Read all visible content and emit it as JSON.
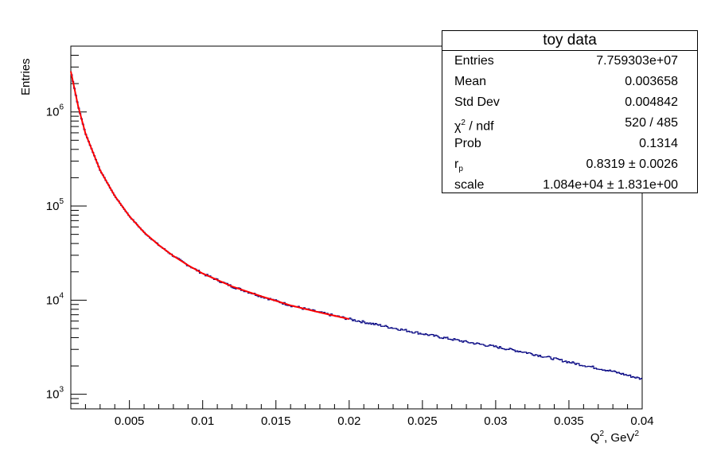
{
  "chart_data": {
    "type": "line",
    "title": "",
    "xlabel_main": "Q",
    "xlabel_sup": "2",
    "xlabel_rest": ", GeV",
    "xlabel_sup2": "2",
    "ylabel": "Entries",
    "xlim": [
      0.001,
      0.04
    ],
    "ylim": [
      700,
      5000000
    ],
    "yscale": "log",
    "grid": false,
    "x_ticks": [
      {
        "value": 0.005,
        "label": "0.005"
      },
      {
        "value": 0.01,
        "label": "0.01"
      },
      {
        "value": 0.015,
        "label": "0.015"
      },
      {
        "value": 0.02,
        "label": "0.02"
      },
      {
        "value": 0.025,
        "label": "0.025"
      },
      {
        "value": 0.03,
        "label": "0.03"
      },
      {
        "value": 0.035,
        "label": "0.035"
      },
      {
        "value": 0.04,
        "label": "0.04"
      }
    ],
    "y_ticks": [
      {
        "value": 1000,
        "base": "10",
        "exp": "3"
      },
      {
        "value": 10000,
        "base": "10",
        "exp": "4"
      },
      {
        "value": 100000,
        "base": "10",
        "exp": "5"
      },
      {
        "value": 1000000,
        "base": "10",
        "exp": "6"
      }
    ],
    "series": [
      {
        "kind": "histogram",
        "color": "#000080",
        "x": [
          0.001,
          0.0015,
          0.002,
          0.003,
          0.004,
          0.005,
          0.006,
          0.007,
          0.008,
          0.009,
          0.01,
          0.012,
          0.014,
          0.016,
          0.018,
          0.02,
          0.022,
          0.025,
          0.028,
          0.03,
          0.032,
          0.035,
          0.038,
          0.04
        ],
        "y": [
          2700000,
          1150000,
          590000,
          240000,
          128000,
          78000,
          52500,
          38500,
          29500,
          23500,
          19200,
          14000,
          11000,
          8800,
          7400,
          6300,
          5450,
          4400,
          3600,
          3200,
          2800,
          2200,
          1750,
          1450
        ]
      },
      {
        "kind": "fit",
        "color": "#ff0000",
        "x": [
          0.001,
          0.0015,
          0.002,
          0.003,
          0.004,
          0.005,
          0.006,
          0.007,
          0.008,
          0.009,
          0.01,
          0.012,
          0.014,
          0.016,
          0.018,
          0.02
        ],
        "y": [
          2700000,
          1150000,
          590000,
          240000,
          128000,
          78000,
          52500,
          38500,
          29500,
          23500,
          19200,
          14000,
          11000,
          8800,
          7400,
          6300
        ]
      }
    ],
    "stats": {
      "title": "toy data",
      "rows": [
        {
          "key": "Entries",
          "value": "7.759303e+07"
        },
        {
          "key": "Mean",
          "value": "0.003658"
        },
        {
          "key": "Std Dev",
          "value": "0.004842"
        },
        {
          "key_main": "χ",
          "key_sup": "2",
          "key_rest": " / ndf",
          "value": "520 / 485"
        },
        {
          "key": "Prob",
          "value": "0.1314"
        },
        {
          "key_main": "r",
          "key_sub": "p",
          "value": "0.8319 ± 0.0026"
        },
        {
          "key": "scale",
          "value": "1.084e+04 ± 1.831e+00"
        }
      ]
    }
  }
}
